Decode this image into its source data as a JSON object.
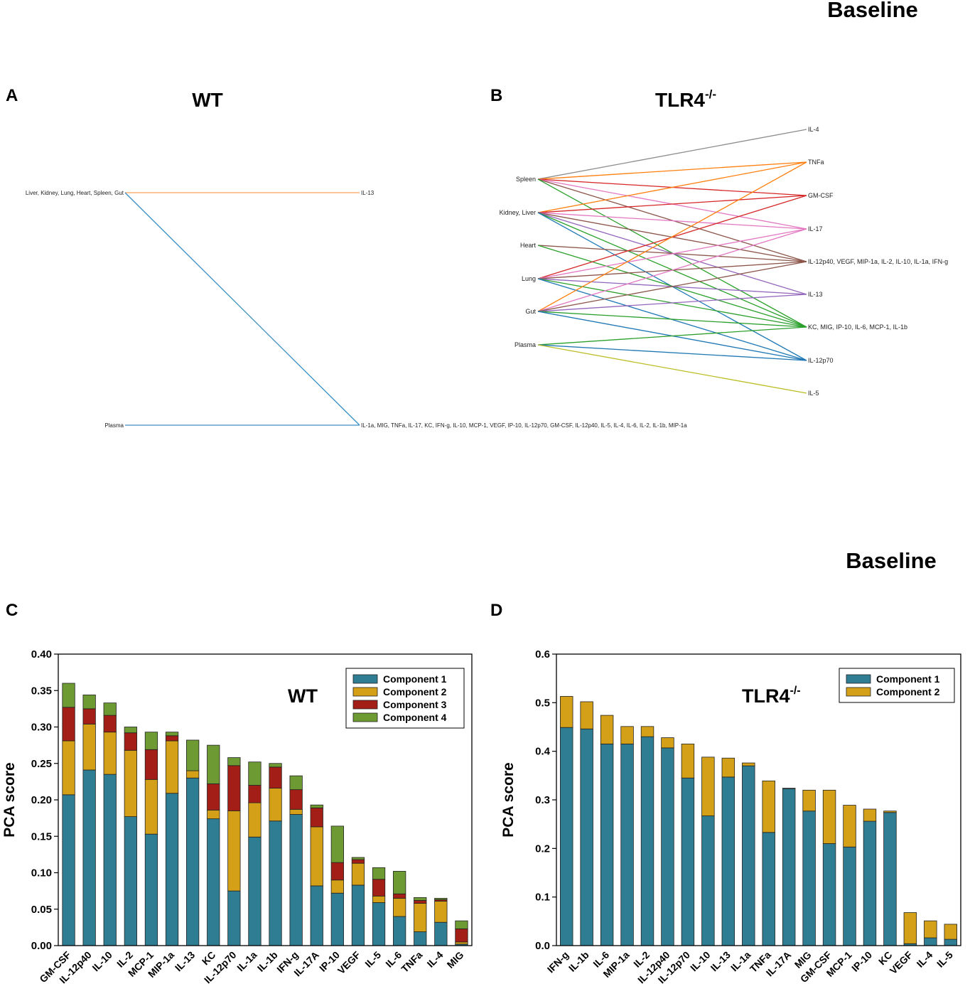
{
  "header": {
    "baseline_top": "Baseline",
    "baseline_mid": "Baseline"
  },
  "panels": {
    "A": {
      "letter": "A",
      "title": "WT"
    },
    "B": {
      "letter": "B",
      "title_main": "TLR4",
      "title_sup": "-/-"
    },
    "C": {
      "letter": "C",
      "inset_label": "WT"
    },
    "D": {
      "letter": "D",
      "inset_label_main": "TLR4",
      "inset_label_sup": "-/-"
    }
  },
  "network_A": {
    "left_nodes": [
      "Liver, Kidney, Lung, Heart, Spleen, Gut",
      "Plasma"
    ],
    "right_nodes": [
      "IL-13",
      "IL-1a, MIG, TNFa, IL-17, KC, IFN-g, IL-10, MCP-1, VEGF, IP-10, IL-12p70, GM-CSF, IL-12p40, IL-5, IL-4, IL-6, IL-2, IL-1b, MIP-1a"
    ],
    "edges": [
      {
        "from": 0,
        "to": 0,
        "color": "#f7a35c"
      },
      {
        "from": 0,
        "to": 1,
        "color": "#3a8fc4"
      },
      {
        "from": 1,
        "to": 1,
        "color": "#3a8fc4"
      }
    ]
  },
  "network_B": {
    "left_nodes": [
      "Spleen",
      "Kidney, Liver",
      "Heart",
      "Lung",
      "Gut",
      "Plasma"
    ],
    "right_nodes": [
      "IL-4",
      "TNFa",
      "GM-CSF",
      "IL-17",
      "IL-12p40, VEGF, MIP-1a, IL-2, IL-10, IL-1a, IFN-g",
      "IL-13",
      "KC, MIG, IP-10, IL-6, MCP-1, IL-1b",
      "IL-12p70",
      "IL-5"
    ],
    "edges": [
      {
        "from": 0,
        "to": 0,
        "color": "#8c8c8c"
      },
      {
        "from": 0,
        "to": 1,
        "color": "#ff7f0e"
      },
      {
        "from": 0,
        "to": 2,
        "color": "#d62728"
      },
      {
        "from": 0,
        "to": 3,
        "color": "#e377c2"
      },
      {
        "from": 0,
        "to": 4,
        "color": "#8c564b"
      },
      {
        "from": 0,
        "to": 6,
        "color": "#2ca02c"
      },
      {
        "from": 1,
        "to": 1,
        "color": "#ff7f0e"
      },
      {
        "from": 1,
        "to": 2,
        "color": "#d62728"
      },
      {
        "from": 1,
        "to": 3,
        "color": "#e377c2"
      },
      {
        "from": 1,
        "to": 4,
        "color": "#8c564b"
      },
      {
        "from": 1,
        "to": 5,
        "color": "#9467bd"
      },
      {
        "from": 1,
        "to": 6,
        "color": "#2ca02c"
      },
      {
        "from": 1,
        "to": 7,
        "color": "#1f77b4"
      },
      {
        "from": 2,
        "to": 4,
        "color": "#8c564b"
      },
      {
        "from": 2,
        "to": 6,
        "color": "#2ca02c"
      },
      {
        "from": 3,
        "to": 2,
        "color": "#d62728"
      },
      {
        "from": 3,
        "to": 3,
        "color": "#e377c2"
      },
      {
        "from": 3,
        "to": 4,
        "color": "#8c564b"
      },
      {
        "from": 3,
        "to": 5,
        "color": "#9467bd"
      },
      {
        "from": 3,
        "to": 6,
        "color": "#2ca02c"
      },
      {
        "from": 3,
        "to": 7,
        "color": "#1f77b4"
      },
      {
        "from": 4,
        "to": 1,
        "color": "#ff7f0e"
      },
      {
        "from": 4,
        "to": 3,
        "color": "#e377c2"
      },
      {
        "from": 4,
        "to": 4,
        "color": "#8c564b"
      },
      {
        "from": 4,
        "to": 5,
        "color": "#9467bd"
      },
      {
        "from": 4,
        "to": 6,
        "color": "#2ca02c"
      },
      {
        "from": 4,
        "to": 7,
        "color": "#1f77b4"
      },
      {
        "from": 5,
        "to": 6,
        "color": "#2ca02c"
      },
      {
        "from": 5,
        "to": 7,
        "color": "#1f77b4"
      },
      {
        "from": 5,
        "to": 8,
        "color": "#bcbd22"
      }
    ]
  },
  "chart_data": [
    {
      "type": "bar",
      "stacked": true,
      "panel": "C",
      "ylabel": "PCA score",
      "ylim": [
        0,
        0.4
      ],
      "yticks": [
        "0.00",
        "0.05",
        "0.10",
        "0.15",
        "0.20",
        "0.25",
        "0.30",
        "0.35",
        "0.40"
      ],
      "categories": [
        "GM-CSF",
        "IL-12p40",
        "IL-10",
        "IL-2",
        "MCP-1",
        "MIP-1a",
        "IL-13",
        "KC",
        "IL-12p70",
        "IL-1a",
        "IL-1b",
        "IFN-g",
        "IL-17A",
        "IP-10",
        "VEGF",
        "IL-5",
        "IL-6",
        "TNFa",
        "IL-4",
        "MIG"
      ],
      "series": [
        {
          "name": "Component 1",
          "color": "#2e7d93",
          "values": [
            0.207,
            0.241,
            0.235,
            0.177,
            0.153,
            0.209,
            0.23,
            0.174,
            0.075,
            0.149,
            0.171,
            0.18,
            0.082,
            0.072,
            0.083,
            0.059,
            0.04,
            0.019,
            0.032,
            0.002
          ]
        },
        {
          "name": "Component 2",
          "color": "#d4a017",
          "values": [
            0.074,
            0.063,
            0.058,
            0.091,
            0.075,
            0.072,
            0.01,
            0.012,
            0.11,
            0.047,
            0.045,
            0.007,
            0.081,
            0.018,
            0.03,
            0.009,
            0.025,
            0.039,
            0.029,
            0.003
          ]
        },
        {
          "name": "Component 3",
          "color": "#a31e16",
          "values": [
            0.046,
            0.021,
            0.023,
            0.024,
            0.041,
            0.007,
            0.0,
            0.036,
            0.062,
            0.024,
            0.029,
            0.027,
            0.026,
            0.024,
            0.005,
            0.023,
            0.006,
            0.004,
            0.002,
            0.018
          ]
        },
        {
          "name": "Component 4",
          "color": "#6e9a34",
          "values": [
            0.033,
            0.019,
            0.017,
            0.008,
            0.024,
            0.005,
            0.042,
            0.053,
            0.011,
            0.032,
            0.005,
            0.019,
            0.004,
            0.05,
            0.003,
            0.016,
            0.031,
            0.004,
            0.002,
            0.011
          ]
        }
      ],
      "legend": "top-right"
    },
    {
      "type": "bar",
      "stacked": true,
      "panel": "D",
      "ylabel": "PCA score",
      "ylim": [
        0,
        0.6
      ],
      "yticks": [
        "0.0",
        "0.1",
        "0.2",
        "0.3",
        "0.4",
        "0.5",
        "0.6"
      ],
      "categories": [
        "IFN-g",
        "IL-1b",
        "IL-6",
        "MIP-1a",
        "IL-2",
        "IL-12p40",
        "IL-12p70",
        "IL-10",
        "IL-13",
        "IL-1a",
        "TNFa",
        "IL-17A",
        "MIG",
        "GM-CSF",
        "MCP-1",
        "IP-10",
        "KC",
        "VEGF",
        "IL-4",
        "IL-5"
      ],
      "series": [
        {
          "name": "Component 1",
          "color": "#2e7d93",
          "values": [
            0.449,
            0.446,
            0.415,
            0.415,
            0.43,
            0.407,
            0.345,
            0.267,
            0.347,
            0.37,
            0.233,
            0.323,
            0.277,
            0.21,
            0.203,
            0.256,
            0.274,
            0.004,
            0.016,
            0.013
          ]
        },
        {
          "name": "Component 2",
          "color": "#d4a017",
          "values": [
            0.064,
            0.056,
            0.059,
            0.036,
            0.021,
            0.021,
            0.07,
            0.121,
            0.039,
            0.006,
            0.106,
            0.001,
            0.043,
            0.11,
            0.086,
            0.025,
            0.003,
            0.064,
            0.035,
            0.031
          ]
        }
      ],
      "legend": "top-left"
    }
  ]
}
